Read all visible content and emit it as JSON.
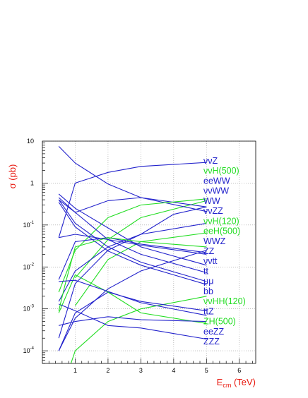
{
  "chart_data": {
    "type": "line",
    "title": "",
    "xlabel": "E",
    "xlabel_sub": "cm",
    "xlabel_unit": " (TeV)",
    "ylabel": "σ (pb)",
    "xlim": [
      0,
      6.5
    ],
    "ylim": [
      5e-05,
      10
    ],
    "yscale": "log",
    "grid": true,
    "x_ticks": [
      1,
      2,
      3,
      4,
      5,
      6
    ],
    "x_tick_labels": [
      "1",
      "2",
      "3",
      "4",
      "5",
      "6"
    ],
    "y_ticks": [
      0.0001,
      0.001,
      0.01,
      0.1,
      1,
      10
    ],
    "y_tick_labels": [
      {
        "base": "10",
        "exp": "-4"
      },
      {
        "base": "10",
        "exp": "-3"
      },
      {
        "base": "10",
        "exp": "-2"
      },
      {
        "base": "10",
        "exp": "-1"
      },
      {
        "base": "1",
        "exp": ""
      },
      {
        "base": "10",
        "exp": ""
      }
    ],
    "colors": {
      "blue": "#2222cc",
      "green": "#22dd22",
      "axis_title": "#e8160c"
    },
    "series": [
      {
        "name": "ννZ",
        "color": "blue",
        "x": [
          0.5,
          1,
          2,
          3,
          5
        ],
        "y": [
          0.05,
          1.0,
          1.8,
          2.5,
          3.1
        ]
      },
      {
        "name": "ννH(500)",
        "color": "green",
        "x": [
          1,
          2,
          3,
          5
        ],
        "y": [
          0.0055,
          0.045,
          0.15,
          0.38
        ]
      },
      {
        "name": "eeWW",
        "color": "blue",
        "x": [
          0.5,
          1,
          2,
          3,
          5
        ],
        "y": [
          0.4,
          0.2,
          0.38,
          0.45,
          0.27
        ]
      },
      {
        "name": "ννWW",
        "color": "blue",
        "x": [
          0.5,
          1,
          2,
          3,
          4,
          5
        ],
        "y": [
          0.0015,
          0.008,
          0.03,
          0.06,
          0.18,
          0.27
        ]
      },
      {
        "name": "WW",
        "color": "blue",
        "x": [
          0.5,
          1,
          2,
          3,
          5
        ],
        "y": [
          7.5,
          3.0,
          0.95,
          0.45,
          0.21
        ]
      },
      {
        "name": "ννZZ",
        "color": "blue",
        "x": [
          0.5,
          1,
          2,
          3,
          5
        ],
        "y": [
          0.0002,
          0.004,
          0.025,
          0.06,
          0.11
        ]
      },
      {
        "name": "ννH(120)",
        "color": "green",
        "x": [
          0.5,
          1,
          2,
          3,
          5
        ],
        "y": [
          0.0025,
          0.025,
          0.15,
          0.3,
          0.42
        ]
      },
      {
        "name": "eeH(500)",
        "color": "green",
        "x": [
          1,
          2,
          3,
          5
        ],
        "y": [
          0.0012,
          0.015,
          0.04,
          0.065
        ]
      },
      {
        "name": "WWZ",
        "color": "blue",
        "x": [
          0.5,
          1,
          2,
          3,
          5
        ],
        "y": [
          0.005,
          0.04,
          0.05,
          0.035,
          0.022
        ]
      },
      {
        "name": "ZZ",
        "color": "blue",
        "x": [
          0.5,
          1,
          2,
          3,
          5
        ],
        "y": [
          0.55,
          0.25,
          0.085,
          0.03,
          0.011
        ]
      },
      {
        "name": "ννtt",
        "color": "blue",
        "x": [
          0.5,
          1,
          2,
          3,
          5
        ],
        "y": [
          0.0001,
          0.0006,
          0.003,
          0.008,
          0.025
        ]
      },
      {
        "name": "tt",
        "color": "blue",
        "x": [
          0.5,
          1,
          2,
          3,
          5
        ],
        "y": [
          0.45,
          0.2,
          0.045,
          0.02,
          0.0073
        ]
      },
      {
        "name": "μμ",
        "color": "blue",
        "x": [
          0.5,
          1,
          2,
          3,
          5
        ],
        "y": [
          0.4,
          0.11,
          0.03,
          0.013,
          0.0045
        ]
      },
      {
        "name": "bb",
        "color": "blue",
        "x": [
          0.5,
          1,
          2,
          3,
          5
        ],
        "y": [
          0.35,
          0.09,
          0.024,
          0.011,
          0.0038
        ]
      },
      {
        "name": "ννHH(120)",
        "color": "green",
        "x": [
          0.5,
          1,
          2,
          3,
          5
        ],
        "y": [
          7e-06,
          0.0001,
          0.0005,
          0.001,
          0.002
        ]
      },
      {
        "name": "ttZ",
        "color": "blue",
        "x": [
          0.5,
          1,
          2,
          3,
          5
        ],
        "y": [
          0.0001,
          0.0008,
          0.0025,
          0.0015,
          0.0009
        ]
      },
      {
        "name": "ZH(500)",
        "color": "green",
        "x": [
          0.5,
          1,
          2,
          3,
          5
        ],
        "y": [
          0.0008,
          0.0065,
          0.0025,
          0.0008,
          0.00045
        ]
      },
      {
        "name": "eeZZ",
        "color": "blue",
        "x": [
          0.5,
          1,
          2,
          3,
          5
        ],
        "y": [
          0.0004,
          0.0005,
          0.00065,
          0.00055,
          0.0005
        ]
      },
      {
        "name": "ZZZ",
        "color": "blue",
        "x": [
          0.5,
          1,
          2,
          3,
          5
        ],
        "y": [
          0.0013,
          0.0009,
          0.0004,
          0.00035,
          0.00019
        ]
      },
      {
        "name": "",
        "color": "blue",
        "x": [
          0.5,
          1,
          2,
          3,
          5
        ],
        "y": [
          0.05,
          0.06,
          0.045,
          0.033,
          0.02
        ]
      },
      {
        "name": "",
        "color": "green",
        "x": [
          0.5,
          0.7,
          1,
          2,
          3,
          5
        ],
        "y": [
          0.0009,
          0.004,
          0.03,
          0.05,
          0.04,
          0.03
        ]
      },
      {
        "name": "",
        "color": "blue",
        "x": [
          0.5,
          1,
          2,
          3,
          5
        ],
        "y": [
          0.0045,
          0.0048,
          0.0026,
          0.0014,
          0.0007
        ]
      }
    ],
    "label_order": [
      "ννZ",
      "ννH(500)",
      "eeWW",
      "ννWW",
      "WW",
      "ννZZ",
      "ννH(120)",
      "eeH(500)",
      "WWZ",
      "ZZ",
      "ννtt",
      "tt",
      "μμ",
      "bb",
      "ννHH(120)",
      "ttZ",
      "ZH(500)",
      "eeZZ",
      "ZZZ"
    ]
  }
}
